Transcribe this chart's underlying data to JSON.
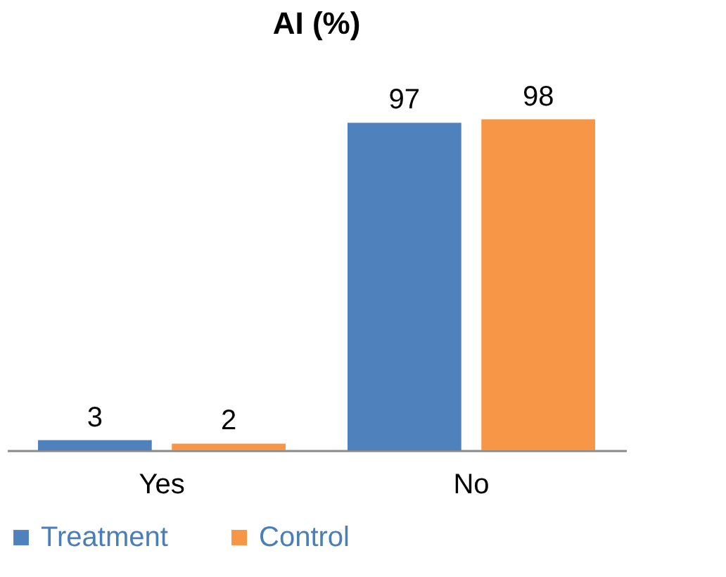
{
  "chart_data": {
    "type": "bar",
    "title": "AI (%)",
    "categories": [
      "Yes",
      "No"
    ],
    "series": [
      {
        "name": "Treatment",
        "color": "#4f81bd",
        "values": [
          3,
          97
        ]
      },
      {
        "name": "Control",
        "color": "#f79646",
        "values": [
          2,
          98
        ]
      }
    ],
    "data_labels": true,
    "legend": "bottom"
  }
}
